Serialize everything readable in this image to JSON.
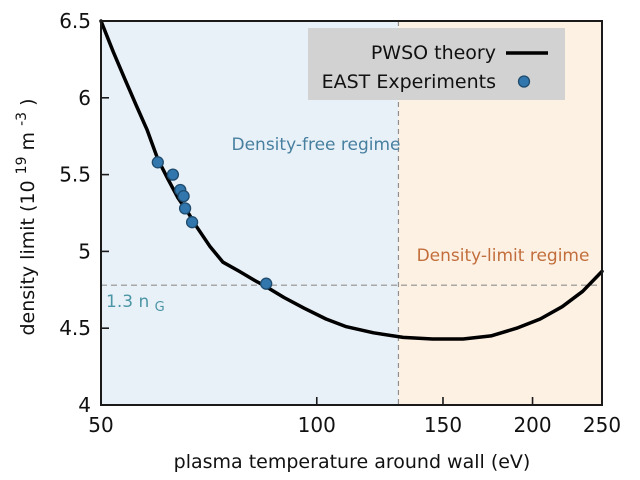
{
  "colors": {
    "curve": "#000000",
    "dot_fill": "#3176ad",
    "dot_edge": "#1f4c6e",
    "region_free": "#e9f1f8",
    "region_limit": "#fdf1e3",
    "legend_bg": "#d2d2d2",
    "dashed": "#8f8f8f",
    "frame": "#1a1a1a",
    "tick_text": "#111111",
    "free_text": "#477f9f",
    "limit_text": "#c26e3c",
    "ng_text": "#4b96a5",
    "legend_text": "#111111"
  },
  "axes": {
    "x_label": "plasma temperature around wall (eV)",
    "y_pre": "density limit (10",
    "y_sup1": "19",
    "y_mid": "m",
    "y_sup2": "-3",
    "y_post": ")"
  },
  "annotations": {
    "ng_main": "1.3 n",
    "ng_sub": "G"
  },
  "chart_data": {
    "type": "line",
    "title": "",
    "xlabel": "plasma temperature around wall (eV)",
    "ylabel": "density limit (10^19 m^-3)",
    "x_scale": "log",
    "y_scale": "linear",
    "xlim": [
      50,
      250
    ],
    "ylim": [
      4,
      6.5
    ],
    "x_ticks": [
      50,
      100,
      150,
      200,
      250
    ],
    "y_ticks": [
      4,
      4.5,
      5,
      5.5,
      6,
      6.5
    ],
    "grid": false,
    "legend_position": "top-right",
    "series": [
      {
        "name": "PWSO theory",
        "type": "line",
        "color": "#000000",
        "points": [
          [
            50,
            6.5
          ],
          [
            52,
            6.3
          ],
          [
            54,
            6.12
          ],
          [
            56,
            5.95
          ],
          [
            58,
            5.79
          ],
          [
            60,
            5.6
          ],
          [
            62,
            5.47
          ],
          [
            64,
            5.35
          ],
          [
            66,
            5.26
          ],
          [
            68,
            5.16
          ],
          [
            71,
            5.03
          ],
          [
            74,
            4.93
          ],
          [
            78,
            4.87
          ],
          [
            82,
            4.81
          ],
          [
            85,
            4.77
          ],
          [
            90,
            4.7
          ],
          [
            96,
            4.63
          ],
          [
            103,
            4.56
          ],
          [
            110,
            4.51
          ],
          [
            120,
            4.47
          ],
          [
            132,
            4.44
          ],
          [
            145,
            4.43
          ],
          [
            160,
            4.43
          ],
          [
            175,
            4.45
          ],
          [
            190,
            4.5
          ],
          [
            205,
            4.56
          ],
          [
            220,
            4.64
          ],
          [
            235,
            4.74
          ],
          [
            250,
            4.87
          ]
        ]
      },
      {
        "name": "EAST Experiments",
        "type": "scatter",
        "color": "#3176ad",
        "points": [
          [
            60,
            5.58
          ],
          [
            63,
            5.5
          ],
          [
            64.5,
            5.4
          ],
          [
            65.2,
            5.36
          ],
          [
            65.5,
            5.28
          ],
          [
            67,
            5.19
          ],
          [
            85,
            4.79
          ]
        ]
      }
    ],
    "reference_lines": {
      "horizontal": {
        "value": 4.78,
        "label": "1.3 n_G"
      },
      "vertical": {
        "value": 130
      }
    },
    "regions": [
      {
        "from": 50,
        "to": 130,
        "label": "Density-free regime",
        "color": "#e9f1f8"
      },
      {
        "from": 130,
        "to": 250,
        "label": "Density-limit regime",
        "color": "#fdf1e3"
      }
    ]
  }
}
